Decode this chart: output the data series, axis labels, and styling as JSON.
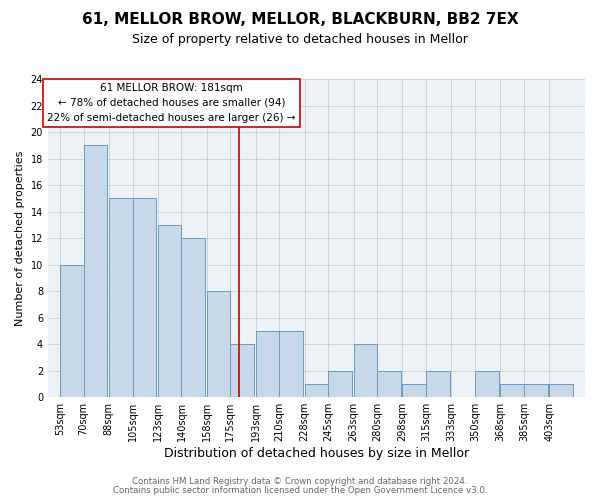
{
  "title": "61, MELLOR BROW, MELLOR, BLACKBURN, BB2 7EX",
  "subtitle": "Size of property relative to detached houses in Mellor",
  "xlabel": "Distribution of detached houses by size in Mellor",
  "ylabel": "Number of detached properties",
  "bin_labels": [
    "53sqm",
    "70sqm",
    "88sqm",
    "105sqm",
    "123sqm",
    "140sqm",
    "158sqm",
    "175sqm",
    "193sqm",
    "210sqm",
    "228sqm",
    "245sqm",
    "263sqm",
    "280sqm",
    "298sqm",
    "315sqm",
    "333sqm",
    "350sqm",
    "368sqm",
    "385sqm",
    "403sqm"
  ],
  "bin_edges": [
    53,
    70,
    88,
    105,
    123,
    140,
    158,
    175,
    193,
    210,
    228,
    245,
    263,
    280,
    298,
    315,
    333,
    350,
    368,
    385,
    403
  ],
  "counts": [
    10,
    19,
    15,
    15,
    13,
    12,
    8,
    4,
    5,
    5,
    1,
    2,
    4,
    2,
    1,
    2,
    0,
    2,
    1,
    1,
    1
  ],
  "property_value": 181,
  "bar_color": "#c8d8e8",
  "bar_edge_color": "#6a9cbf",
  "vline_color": "#cc0000",
  "annotation_box_edge": "#cc0000",
  "annotation_text_line1": "61 MELLOR BROW: 181sqm",
  "annotation_text_line2": "← 78% of detached houses are smaller (94)",
  "annotation_text_line3": "22% of semi-detached houses are larger (26) →",
  "ylim": [
    0,
    24
  ],
  "yticks": [
    0,
    2,
    4,
    6,
    8,
    10,
    12,
    14,
    16,
    18,
    20,
    22,
    24
  ],
  "footer_line1": "Contains HM Land Registry data © Crown copyright and database right 2024.",
  "footer_line2": "Contains public sector information licensed under the Open Government Licence v3.0.",
  "background_color": "#edf2f7",
  "title_fontsize": 11,
  "subtitle_fontsize": 9,
  "xlabel_fontsize": 9,
  "ylabel_fontsize": 8,
  "tick_fontsize": 7,
  "annotation_fontsize": 7.5,
  "footer_fontsize": 6.2
}
